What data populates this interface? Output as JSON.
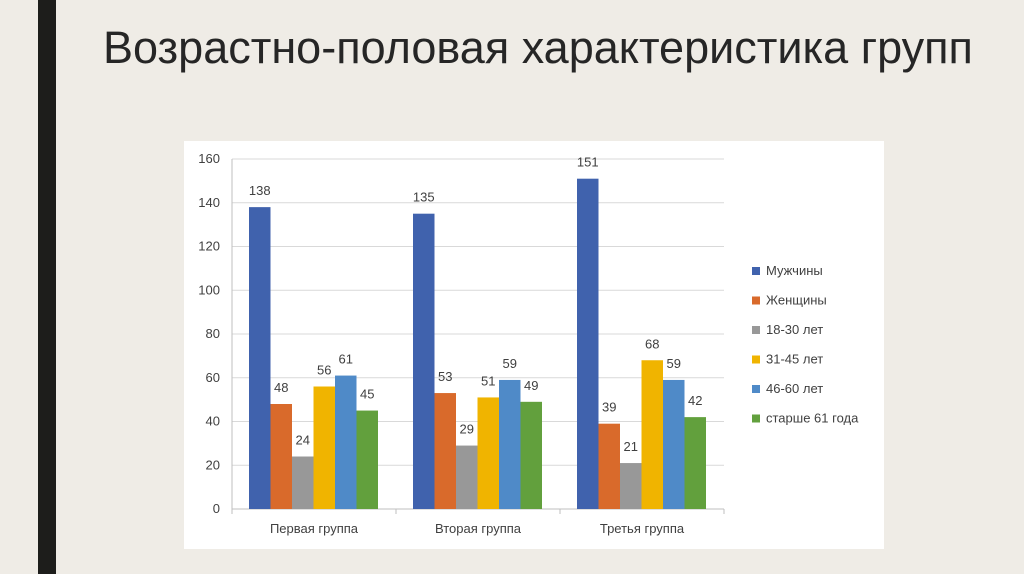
{
  "slide": {
    "title": "Возрастно-половая характеристика групп"
  },
  "chart_data": {
    "type": "bar",
    "categories": [
      "Первая группа",
      "Вторая группа",
      "Третья группа"
    ],
    "series": [
      {
        "name": "Мужчины",
        "color": "#4062ad",
        "values": [
          138,
          135,
          151
        ]
      },
      {
        "name": "Женщины",
        "color": "#d96a2b",
        "values": [
          48,
          53,
          39
        ]
      },
      {
        "name": "18-30 лет",
        "color": "#989898",
        "values": [
          24,
          29,
          21
        ]
      },
      {
        "name": "31-45 лет",
        "color": "#f0b400",
        "values": [
          56,
          51,
          68
        ]
      },
      {
        "name": "46-60 лет",
        "color": "#4f8ac8",
        "values": [
          61,
          59,
          59
        ]
      },
      {
        "name": "старше 61 года",
        "color": "#62a03d",
        "values": [
          45,
          49,
          42
        ]
      }
    ],
    "ylim": [
      0,
      160
    ],
    "yticks": [
      0,
      20,
      40,
      60,
      80,
      100,
      120,
      140,
      160
    ],
    "grid": true,
    "legend": "right",
    "title": "",
    "xlabel": "",
    "ylabel": ""
  }
}
